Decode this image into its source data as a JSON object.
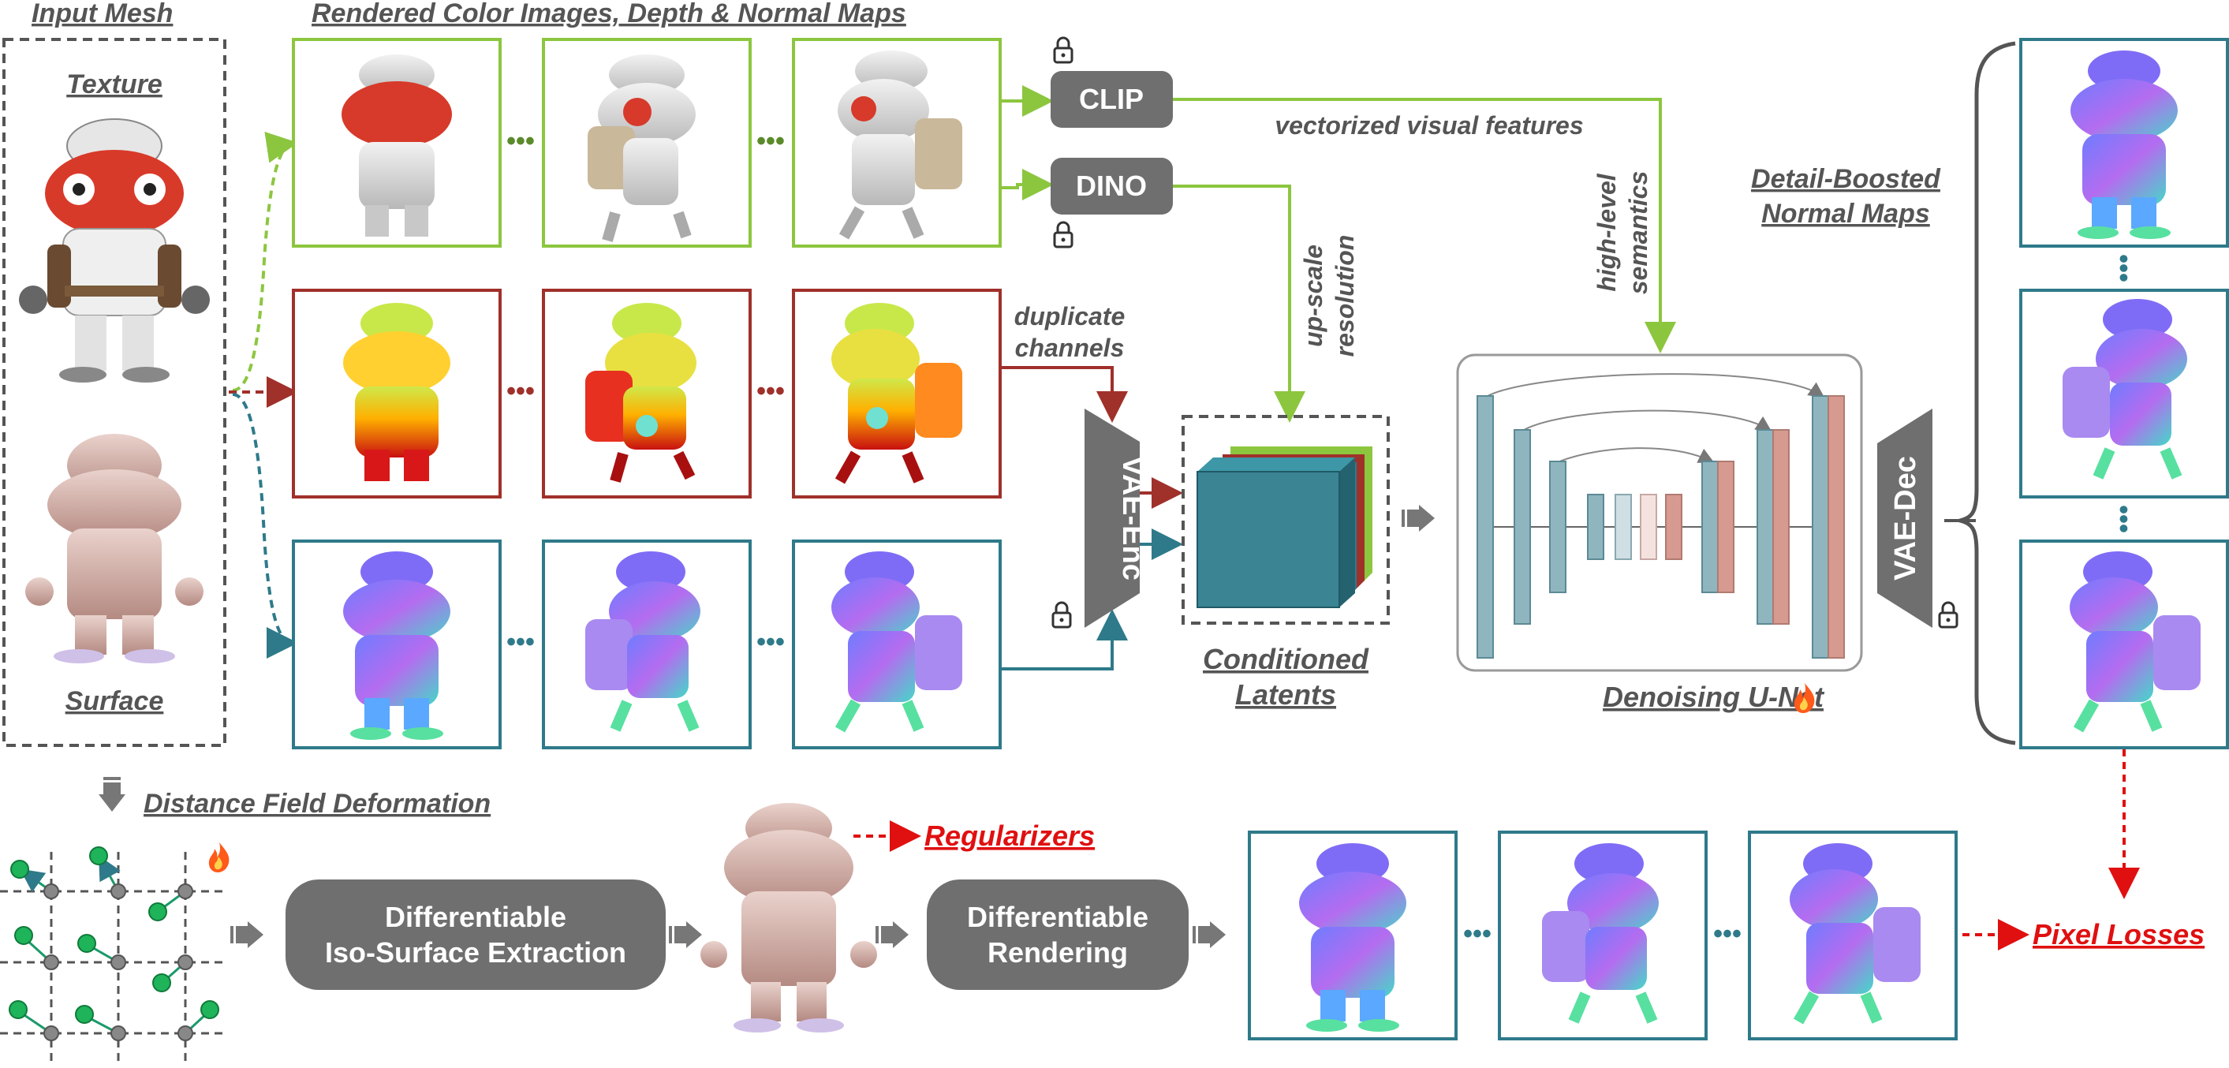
{
  "titles": {
    "input_mesh": "Input Mesh",
    "rendered": "Rendered Color Images, Depth & Normal Maps",
    "texture": "Texture",
    "surface": "Surface",
    "detail_boosted_1": "Detail-Boosted",
    "detail_boosted_2": "Normal Maps",
    "conditioned_1": "Conditioned",
    "conditioned_2": "Latents",
    "unet": "Denoising U-Net",
    "distance_field": "Distance Field Deformation"
  },
  "labels": {
    "vectorized": "vectorized visual features",
    "high_level_1": "high-level",
    "high_level_2": "semantics",
    "upscale_1": "up-scale",
    "upscale_2": "resolution",
    "duplicate_1": "duplicate",
    "duplicate_2": "channels",
    "regularizers": "Regularizers",
    "pixel_losses": "Pixel Losses"
  },
  "boxes": {
    "clip": "CLIP",
    "dino": "DINO",
    "vae_enc": "VAE-Enc",
    "vae_dec": "VAE-Dec",
    "iso_1": "Differentiable",
    "iso_2": "Iso-Surface Extraction",
    "render_1": "Differentiable",
    "render_2": "Rendering"
  },
  "colors": {
    "green": "#8cc63f",
    "red_frame": "#a0302a",
    "teal": "#2e7a8a",
    "gray_box": "#6f6f6f",
    "loss_red": "#e01010"
  },
  "icons": [
    "lock-icon",
    "fire-icon",
    "thick-arrow-icon",
    "ellipsis-dots"
  ]
}
